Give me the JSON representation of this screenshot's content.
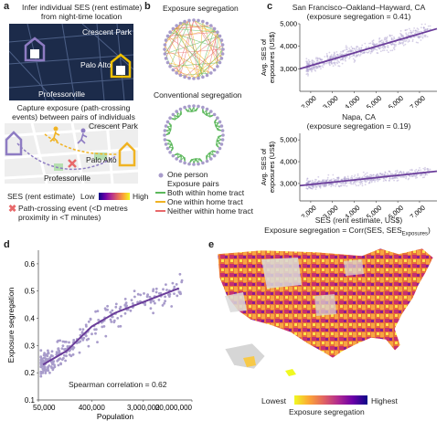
{
  "panels": {
    "a": {
      "label": "a",
      "title1_line1": "Infer individual SES (rent estimate)",
      "title1_line2": "from night-time location",
      "map1_places": [
        "Crescent Park",
        "Palo Alto",
        "Professorville"
      ],
      "title2_line1": "Capture exposure (path-crossing",
      "title2_line2": "events) between pairs of individuals",
      "map2_places": [
        "Crescent Park",
        "Palo Alto",
        "Professorville"
      ],
      "ses_legend_label": "SES (rent estimate)",
      "ses_low": "Low",
      "ses_high": "High",
      "path_event_line1": "Path-crossing event (<D metres",
      "path_event_line2": "proximity in <T minutes)"
    },
    "b": {
      "label": "b",
      "title_top": "Exposure segregation",
      "title_bottom": "Conventional segregation",
      "legend": {
        "one_person": "One person",
        "pairs_title": "Exposure pairs",
        "both": "Both within home tract",
        "one": "One within home tract",
        "neither": "Neither within home tract"
      }
    },
    "c": {
      "label": "c",
      "formula": "Exposure segregation = Corr(SES, SES"
    },
    "d": {
      "label": "d",
      "annotation": "Spearman correlation = 0.62"
    },
    "e": {
      "label": "e",
      "legend_low": "Lowest",
      "legend_high": "Highest",
      "legend_title": "Exposure segregation"
    }
  },
  "colors": {
    "purple": "#6a3d9a",
    "scatter": "#a89ccb",
    "both_green": "#5cb85c",
    "one_orange": "#f0b323",
    "neither_red": "#e8696b",
    "cmap": [
      "#0d0887",
      "#6a00a8",
      "#b12a90",
      "#e16462",
      "#fca636",
      "#f0f921"
    ]
  },
  "chart_data": [
    {
      "type": "scatter",
      "title": "San Francisco–Oakland–Hayward, CA",
      "subtitle": "(exposure segregation = 0.41)",
      "xlabel": "",
      "ylabel": "Avg. SES of exposures (US$)",
      "xlim": [
        1500,
        7800
      ],
      "ylim": [
        2000,
        5000
      ],
      "xticks": [
        2000,
        3000,
        4000,
        5000,
        6000,
        7000
      ],
      "xtick_labels": [
        "2,000",
        "3,000",
        "4,000",
        "5,000",
        "6,000",
        "7,000"
      ],
      "yticks": [
        3000,
        4000,
        5000
      ],
      "ytick_labels": [
        "3,000",
        "4,000",
        "5,000"
      ],
      "fit_line": {
        "x": [
          1500,
          7800
        ],
        "y": [
          3000,
          4780
        ]
      },
      "grid": false
    },
    {
      "type": "scatter",
      "title": "Napa, CA",
      "subtitle": "(exposure segregation = 0.19)",
      "xlabel": "SES (rent estimate, US$)",
      "ylabel": "Avg. SES of exposures (US$)",
      "xlim": [
        1500,
        7800
      ],
      "ylim": [
        2200,
        5300
      ],
      "xticks": [
        2000,
        3000,
        4000,
        5000,
        6000,
        7000
      ],
      "xtick_labels": [
        "2,000",
        "3,000",
        "4,000",
        "5,000",
        "6,000",
        "7,000"
      ],
      "yticks": [
        3000,
        4000,
        5000
      ],
      "ytick_labels": [
        "3,000",
        "4,000",
        "5,000"
      ],
      "fit_line": {
        "x": [
          1500,
          7800
        ],
        "y": [
          2900,
          3560
        ]
      },
      "grid": false
    },
    {
      "type": "scatter",
      "title": "",
      "xlabel": "Population",
      "ylabel": "Exposure segregation",
      "x_scale": "log",
      "xlim": [
        50000,
        20000000
      ],
      "ylim": [
        0.1,
        0.65
      ],
      "xticks": [
        50000,
        400000,
        3000000,
        20000000
      ],
      "xtick_labels": [
        "50,000",
        "400,000",
        "3,000,000",
        "20,000,000"
      ],
      "yticks": [
        0.1,
        0.2,
        0.3,
        0.4,
        0.5,
        0.6
      ],
      "ytick_labels": [
        "0.1",
        "0.2",
        "0.3",
        "0.4",
        "0.5",
        "0.6"
      ],
      "trend_line": {
        "x": [
          60000,
          150000,
          400000,
          1000000,
          3000000,
          12000000
        ],
        "y": [
          0.23,
          0.28,
          0.37,
          0.42,
          0.46,
          0.51
        ]
      },
      "grid": false
    }
  ]
}
